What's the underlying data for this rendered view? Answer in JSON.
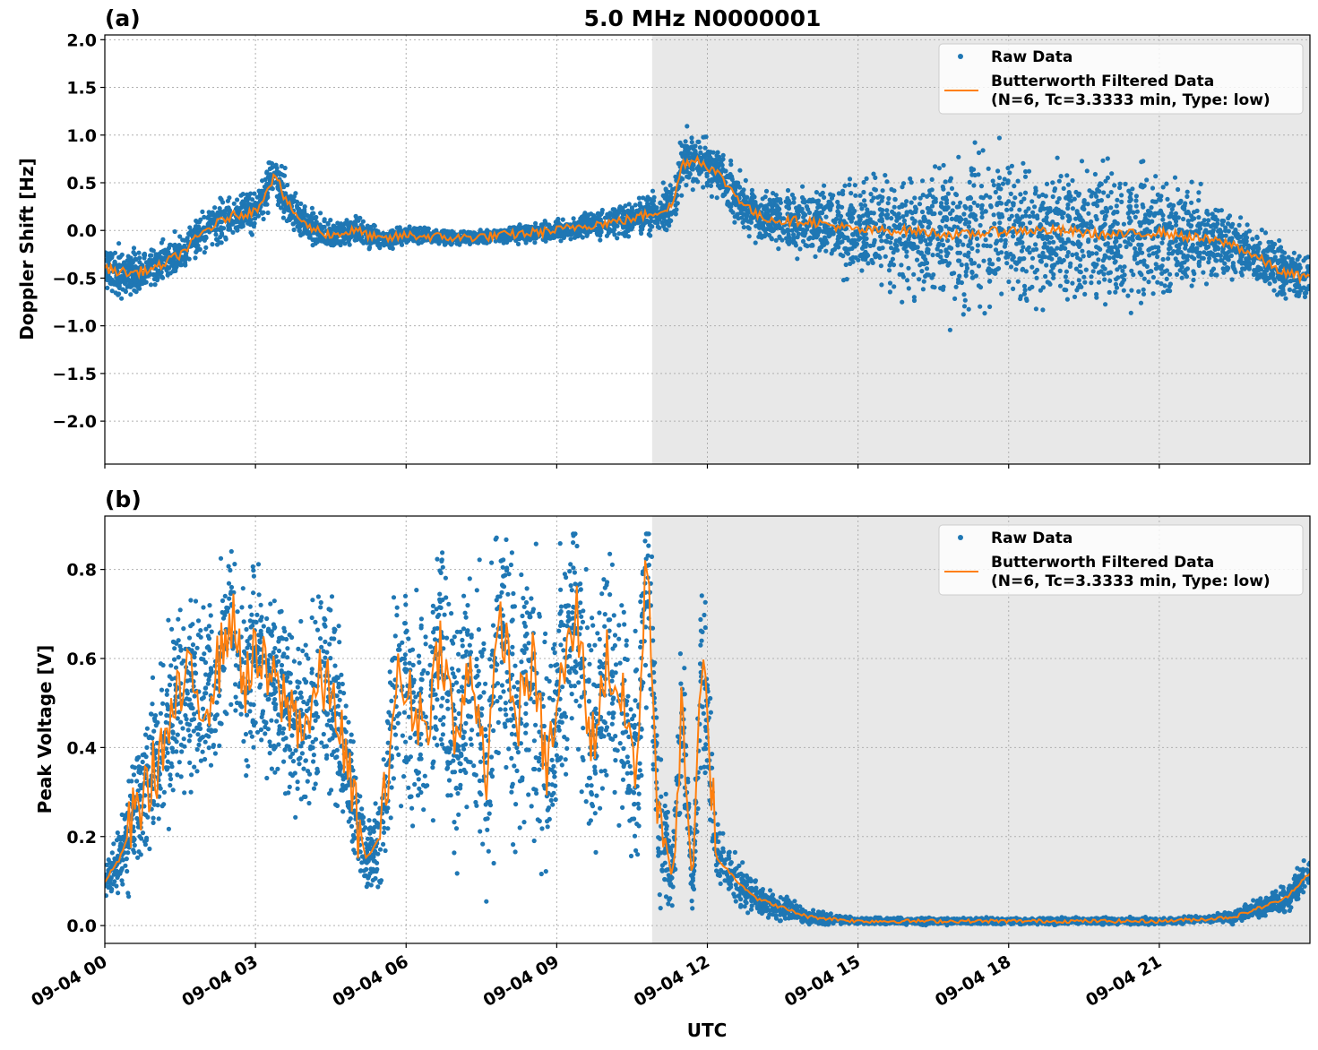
{
  "figure_title": "5.0 MHz N0000001",
  "xlabel": "UTC",
  "x_tick_labels": [
    "09-04 00",
    "09-04 03",
    "09-04 06",
    "09-04 09",
    "09-04 12",
    "09-04 15",
    "09-04 18",
    "09-04 21"
  ],
  "colors": {
    "raw": "#1f77b4",
    "filtered": "#ff7f0e",
    "shade": "#e8e8e8",
    "grid": "#b0b0b0"
  },
  "legend": {
    "raw": "Raw Data",
    "filtered_line1": "Butterworth Filtered Data",
    "filtered_line2": "(N=6, Tc=3.3333 min, Type: low)"
  },
  "chart_data": [
    {
      "type": "scatter",
      "panel_label": "(a)",
      "ylabel": "Doppler Shift [Hz]",
      "xlim_hours": [
        0,
        24
      ],
      "ylim": [
        -2.45,
        2.05
      ],
      "y_ticks": [
        -2.0,
        -1.5,
        -1.0,
        -0.5,
        0.0,
        0.5,
        1.0,
        1.5,
        2.0
      ],
      "y_tick_labels": [
        "−2.0",
        "−1.5",
        "−1.0",
        "−0.5",
        "0.0",
        "0.5",
        "1.0",
        "1.5",
        "2.0"
      ],
      "shade_hours": [
        10.9,
        24
      ],
      "grid": true,
      "legend_position": "top-right",
      "series": [
        {
          "name": "Butterworth Filtered Data",
          "x_hours": [
            0,
            0.5,
            1,
            1.5,
            2,
            2.5,
            3,
            3.2,
            3.4,
            3.6,
            4,
            4.5,
            5,
            5.5,
            6,
            7,
            8,
            9,
            9.5,
            10,
            10.5,
            11,
            11.3,
            11.5,
            11.8,
            12.2,
            12.6,
            13,
            13.5,
            14,
            15,
            16,
            17,
            18,
            19,
            20,
            21,
            22,
            22.5,
            23,
            23.5,
            24
          ],
          "y": [
            -0.4,
            -0.45,
            -0.4,
            -0.25,
            0.0,
            0.15,
            0.2,
            0.4,
            0.6,
            0.3,
            0.05,
            -0.05,
            0.0,
            -0.1,
            -0.05,
            -0.08,
            -0.05,
            0.0,
            0.05,
            0.08,
            0.12,
            0.2,
            0.25,
            0.7,
            0.75,
            0.6,
            0.35,
            0.15,
            0.1,
            0.1,
            0.0,
            0.0,
            -0.05,
            0.0,
            0.0,
            -0.05,
            -0.02,
            -0.1,
            -0.15,
            -0.3,
            -0.45,
            -0.5
          ]
        },
        {
          "name": "Raw Data",
          "x_hours": [
            0,
            1,
            2,
            3,
            3.4,
            4,
            5,
            6,
            7,
            8,
            9,
            10,
            11,
            11.5,
            12,
            13,
            14,
            15,
            16,
            17,
            18,
            19,
            20,
            21,
            22,
            23,
            24
          ],
          "y_spread": [
            0.35,
            0.3,
            0.3,
            0.3,
            0.4,
            0.25,
            0.2,
            0.12,
            0.1,
            0.1,
            0.15,
            0.2,
            0.3,
            0.4,
            0.35,
            0.35,
            0.45,
            0.7,
            0.9,
            1.1,
            1.1,
            1.0,
            1.0,
            0.9,
            0.6,
            0.4,
            0.35
          ]
        }
      ]
    },
    {
      "type": "scatter",
      "panel_label": "(b)",
      "ylabel": "Peak Voltage [V]",
      "xlim_hours": [
        0,
        24
      ],
      "ylim": [
        -0.04,
        0.92
      ],
      "y_ticks": [
        0.0,
        0.2,
        0.4,
        0.6,
        0.8
      ],
      "y_tick_labels": [
        "0.0",
        "0.2",
        "0.4",
        "0.6",
        "0.8"
      ],
      "shade_hours": [
        10.9,
        24
      ],
      "grid": true,
      "legend_position": "top-right",
      "series": [
        {
          "name": "Butterworth Filtered Data",
          "x_hours": [
            0,
            0.3,
            0.6,
            1,
            1.3,
            1.6,
            2,
            2.3,
            2.5,
            2.8,
            3,
            3.3,
            3.6,
            4,
            4.3,
            4.6,
            4.9,
            5.2,
            5.5,
            5.8,
            6.1,
            6.4,
            6.7,
            7,
            7.3,
            7.6,
            7.9,
            8.2,
            8.5,
            8.8,
            9.1,
            9.4,
            9.7,
            10,
            10.3,
            10.6,
            10.8,
            11,
            11.3,
            11.5,
            11.7,
            11.9,
            12.2,
            12.6,
            13,
            13.5,
            14,
            15,
            16,
            17,
            18,
            19,
            20,
            21,
            22,
            22.5,
            23,
            23.5,
            24
          ],
          "y": [
            0.1,
            0.15,
            0.25,
            0.35,
            0.45,
            0.55,
            0.5,
            0.6,
            0.7,
            0.55,
            0.6,
            0.55,
            0.5,
            0.45,
            0.55,
            0.5,
            0.3,
            0.15,
            0.2,
            0.55,
            0.5,
            0.45,
            0.65,
            0.4,
            0.6,
            0.35,
            0.7,
            0.45,
            0.6,
            0.35,
            0.55,
            0.7,
            0.4,
            0.6,
            0.5,
            0.35,
            0.85,
            0.3,
            0.1,
            0.5,
            0.08,
            0.6,
            0.15,
            0.1,
            0.06,
            0.04,
            0.02,
            0.01,
            0.01,
            0.01,
            0.01,
            0.01,
            0.01,
            0.01,
            0.015,
            0.02,
            0.04,
            0.06,
            0.12
          ],
          "raw_spread": [
            0.05,
            0.1,
            0.2,
            0.25,
            0.3,
            0.3,
            0.3,
            0.3,
            0.3,
            0.3,
            0.3,
            0.3,
            0.3,
            0.3,
            0.3,
            0.3,
            0.2,
            0.1,
            0.15,
            0.35,
            0.35,
            0.35,
            0.4,
            0.4,
            0.4,
            0.4,
            0.4,
            0.4,
            0.4,
            0.4,
            0.4,
            0.4,
            0.4,
            0.4,
            0.4,
            0.4,
            0.35,
            0.3,
            0.08,
            0.3,
            0.06,
            0.3,
            0.1,
            0.08,
            0.05,
            0.04,
            0.02,
            0.01,
            0.01,
            0.01,
            0.01,
            0.01,
            0.01,
            0.01,
            0.01,
            0.02,
            0.03,
            0.04,
            0.06
          ]
        },
        {
          "name": "Raw Data"
        }
      ]
    }
  ]
}
